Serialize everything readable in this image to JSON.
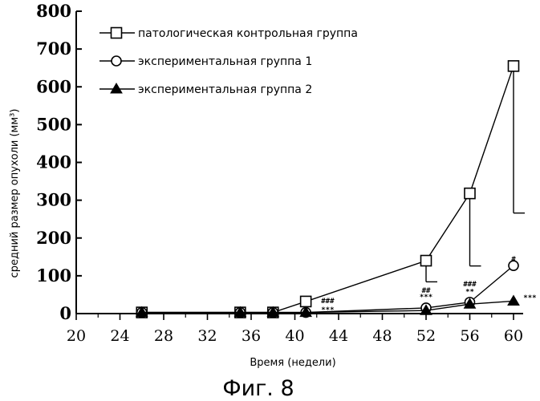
{
  "chart_data": {
    "type": "line",
    "caption": "Фиг. 8",
    "xlabel": "Время (недели)",
    "ylabel": "средний размер опухоли (мм³)",
    "xlim": [
      20,
      60
    ],
    "ylim": [
      0,
      800
    ],
    "x_ticks": [
      "20",
      "24",
      "28",
      "32",
      "36",
      "40",
      "44",
      "48",
      "52",
      "56",
      "60"
    ],
    "y_ticks": [
      "0",
      "100",
      "200",
      "300",
      "400",
      "500",
      "600",
      "700",
      "800"
    ],
    "grid": false,
    "legend_position": "top-left",
    "series": [
      {
        "name": "патологическая контрольная группа",
        "marker": "open-square",
        "x": [
          26,
          35,
          38,
          41,
          52,
          56,
          60
        ],
        "y": [
          3,
          3,
          3,
          32,
          140,
          318,
          655
        ],
        "error_low": [
          null,
          null,
          null,
          null,
          84,
          126,
          266
        ]
      },
      {
        "name": "экспериментальная группа 1",
        "marker": "open-circle",
        "x": [
          26,
          35,
          38,
          41,
          52,
          56,
          60
        ],
        "y": [
          3,
          3,
          3,
          3,
          15,
          30,
          127
        ],
        "error_low": [
          null,
          null,
          null,
          null,
          null,
          null,
          null
        ]
      },
      {
        "name": "экспериментальная группа 2",
        "marker": "filled-triangle",
        "x": [
          26,
          35,
          38,
          41,
          52,
          56,
          60
        ],
        "y": [
          3,
          3,
          3,
          3,
          8,
          25,
          33
        ],
        "error_low": [
          null,
          null,
          null,
          null,
          null,
          null,
          null
        ]
      }
    ],
    "annotations": [
      {
        "x": 43,
        "y": 28,
        "text": "###"
      },
      {
        "x": 43,
        "y": 4,
        "text": "***"
      },
      {
        "x": 52,
        "y": 55,
        "text": "##"
      },
      {
        "x": 52,
        "y": 38,
        "text": "***"
      },
      {
        "x": 56,
        "y": 72,
        "text": "###"
      },
      {
        "x": 56,
        "y": 52,
        "text": "**"
      },
      {
        "x": 60,
        "y": 138,
        "text": "#"
      },
      {
        "x": 61.5,
        "y": 36,
        "text": "***"
      }
    ]
  }
}
